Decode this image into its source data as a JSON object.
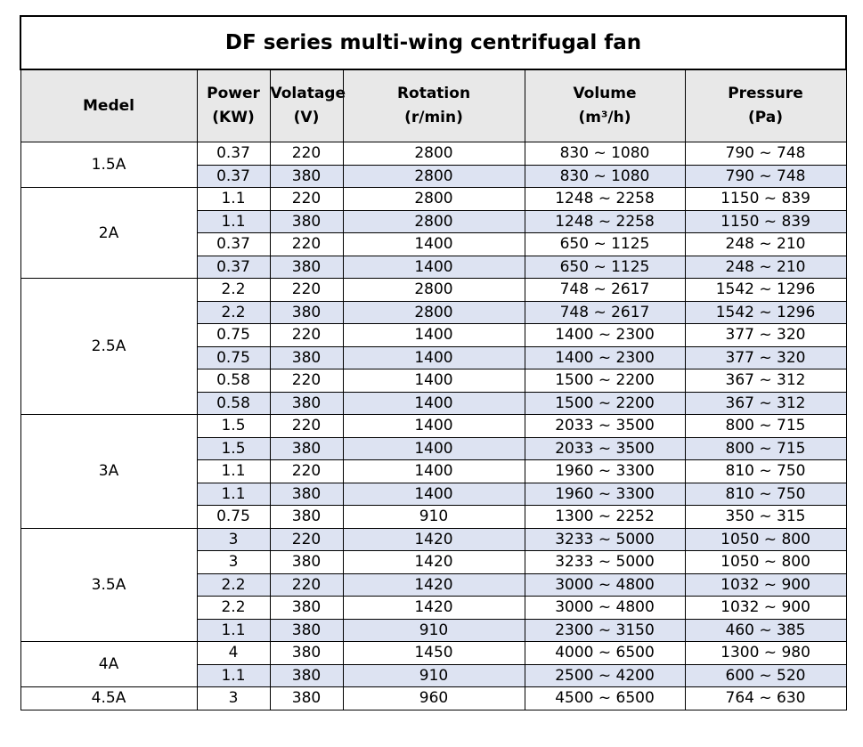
{
  "title": "DF series multi-wing centrifugal fan",
  "headers": [
    {
      "line1": "Medel",
      "line2": ""
    },
    {
      "line1": "Power",
      "line2": "(KW)"
    },
    {
      "line1": "Volatage",
      "line2": "(V)"
    },
    {
      "line1": "Rotation",
      "line2": "(r/min)"
    },
    {
      "line1": "Volume",
      "line2": "(m³/h)"
    },
    {
      "line1": "Pressure",
      "line2": "(Pa)"
    }
  ],
  "groups": [
    {
      "model": "1.5A",
      "rows": [
        {
          "power": "0.37",
          "voltage": "220",
          "rotation": "2800",
          "volume": "830 ~ 1080",
          "pressure": "790 ~ 748",
          "shade": false
        },
        {
          "power": "0.37",
          "voltage": "380",
          "rotation": "2800",
          "volume": "830 ~ 1080",
          "pressure": "790 ~ 748",
          "shade": true
        }
      ]
    },
    {
      "model": "2A",
      "rows": [
        {
          "power": "1.1",
          "voltage": "220",
          "rotation": "2800",
          "volume": "1248 ~ 2258",
          "pressure": "1150 ~ 839",
          "shade": false
        },
        {
          "power": "1.1",
          "voltage": "380",
          "rotation": "2800",
          "volume": "1248 ~ 2258",
          "pressure": "1150 ~ 839",
          "shade": true
        },
        {
          "power": "0.37",
          "voltage": "220",
          "rotation": "1400",
          "volume": "650 ~ 1125",
          "pressure": "248 ~ 210",
          "shade": false
        },
        {
          "power": "0.37",
          "voltage": "380",
          "rotation": "1400",
          "volume": "650 ~ 1125",
          "pressure": "248 ~ 210",
          "shade": true
        }
      ]
    },
    {
      "model": "2.5A",
      "rows": [
        {
          "power": "2.2",
          "voltage": "220",
          "rotation": "2800",
          "volume": "748 ~ 2617",
          "pressure": "1542 ~ 1296",
          "shade": false
        },
        {
          "power": "2.2",
          "voltage": "380",
          "rotation": "2800",
          "volume": "748 ~ 2617",
          "pressure": "1542 ~ 1296",
          "shade": true
        },
        {
          "power": "0.75",
          "voltage": "220",
          "rotation": "1400",
          "volume": "1400 ~ 2300",
          "pressure": "377 ~ 320",
          "shade": false
        },
        {
          "power": "0.75",
          "voltage": "380",
          "rotation": "1400",
          "volume": "1400 ~ 2300",
          "pressure": "377 ~ 320",
          "shade": true
        },
        {
          "power": "0.58",
          "voltage": "220",
          "rotation": "1400",
          "volume": "1500 ~ 2200",
          "pressure": "367 ~ 312",
          "shade": false
        },
        {
          "power": "0.58",
          "voltage": "380",
          "rotation": "1400",
          "volume": "1500 ~ 2200",
          "pressure": "367 ~ 312",
          "shade": true
        }
      ]
    },
    {
      "model": "3A",
      "rows": [
        {
          "power": "1.5",
          "voltage": "220",
          "rotation": "1400",
          "volume": "2033 ~ 3500",
          "pressure": "800 ~ 715",
          "shade": false
        },
        {
          "power": "1.5",
          "voltage": "380",
          "rotation": "1400",
          "volume": "2033 ~ 3500",
          "pressure": "800 ~ 715",
          "shade": true
        },
        {
          "power": "1.1",
          "voltage": "220",
          "rotation": "1400",
          "volume": "1960 ~ 3300",
          "pressure": "810 ~ 750",
          "shade": false
        },
        {
          "power": "1.1",
          "voltage": "380",
          "rotation": "1400",
          "volume": "1960 ~ 3300",
          "pressure": "810 ~ 750",
          "shade": true
        },
        {
          "power": "0.75",
          "voltage": "380",
          "rotation": "910",
          "volume": "1300 ~ 2252",
          "pressure": "350 ~ 315",
          "shade": false
        }
      ]
    },
    {
      "model": "3.5A",
      "rows": [
        {
          "power": "3",
          "voltage": "220",
          "rotation": "1420",
          "volume": "3233 ~ 5000",
          "pressure": "1050 ~ 800",
          "shade": true
        },
        {
          "power": "3",
          "voltage": "380",
          "rotation": "1420",
          "volume": "3233 ~ 5000",
          "pressure": "1050 ~ 800",
          "shade": false
        },
        {
          "power": "2.2",
          "voltage": "220",
          "rotation": "1420",
          "volume": "3000 ~ 4800",
          "pressure": "1032 ~ 900",
          "shade": true
        },
        {
          "power": "2.2",
          "voltage": "380",
          "rotation": "1420",
          "volume": "3000 ~ 4800",
          "pressure": "1032 ~ 900",
          "shade": false
        },
        {
          "power": "1.1",
          "voltage": "380",
          "rotation": "910",
          "volume": "2300 ~ 3150",
          "pressure": "460 ~ 385",
          "shade": true
        }
      ]
    },
    {
      "model": "4A",
      "rows": [
        {
          "power": "4",
          "voltage": "380",
          "rotation": "1450",
          "volume": "4000 ~ 6500",
          "pressure": "1300 ~ 980",
          "shade": false
        },
        {
          "power": "1.1",
          "voltage": "380",
          "rotation": "910",
          "volume": "2500 ~ 4200",
          "pressure": "600 ~ 520",
          "shade": true
        }
      ]
    },
    {
      "model": "4.5A",
      "rows": [
        {
          "power": "3",
          "voltage": "380",
          "rotation": "960",
          "volume": "4500 ~ 6500",
          "pressure": "764 ~ 630",
          "shade": false
        }
      ]
    }
  ]
}
